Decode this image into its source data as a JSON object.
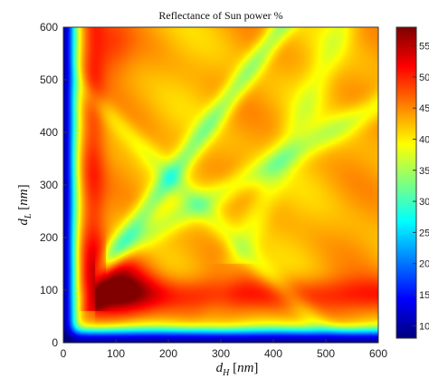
{
  "chart_data": {
    "type": "heatmap",
    "title": "Reflectance of Sun power %",
    "xlabel": "d_H [nm]",
    "ylabel": "d_L [nm]",
    "x_range": [
      0,
      600
    ],
    "y_range": [
      0,
      600
    ],
    "x_ticks": [
      "0",
      "100",
      "200",
      "300",
      "400",
      "500",
      "600"
    ],
    "y_ticks": [
      "0",
      "100",
      "200",
      "300",
      "400",
      "500",
      "600"
    ],
    "colorbar": {
      "colormap": "jet",
      "range": [
        8,
        58
      ],
      "ticks": [
        "10",
        "15",
        "20",
        "25",
        "30",
        "35",
        "40",
        "45",
        "50",
        "55"
      ]
    },
    "grid": false
  }
}
